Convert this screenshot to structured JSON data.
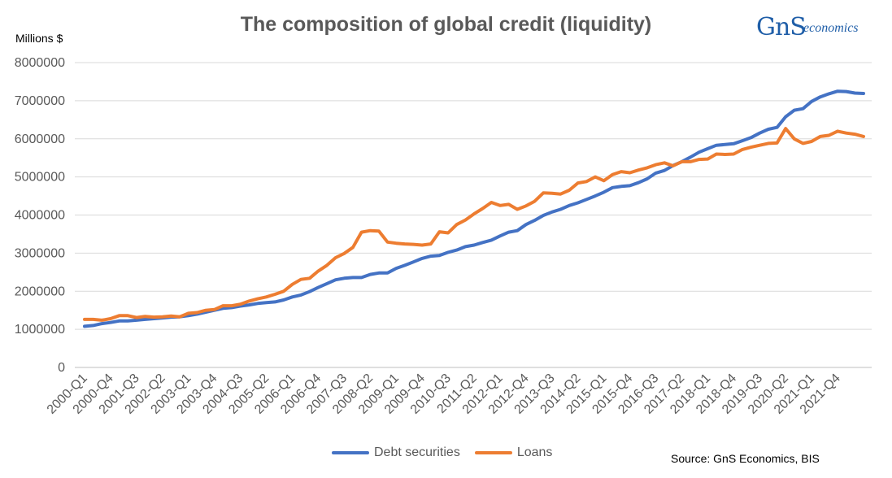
{
  "chart_data": {
    "type": "line",
    "title": "The composition of global credit (liquidity)",
    "ylabel": "Millions $",
    "xlabel": "",
    "ylim": [
      0,
      8000000
    ],
    "yticks": [
      0,
      1000000,
      2000000,
      3000000,
      4000000,
      5000000,
      6000000,
      7000000,
      8000000
    ],
    "ytick_labels": [
      "0",
      "1000000",
      "2000000",
      "3000000",
      "4000000",
      "5000000",
      "6000000",
      "7000000",
      "8000000"
    ],
    "grid": "horizontal",
    "legend_position": "bottom",
    "x": [
      "2000-Q1",
      "2000-Q2",
      "2000-Q3",
      "2000-Q4",
      "2001-Q1",
      "2001-Q2",
      "2001-Q3",
      "2001-Q4",
      "2002-Q1",
      "2002-Q2",
      "2002-Q3",
      "2002-Q4",
      "2003-Q1",
      "2003-Q2",
      "2003-Q3",
      "2003-Q4",
      "2004-Q1",
      "2004-Q2",
      "2004-Q3",
      "2004-Q4",
      "2005-Q1",
      "2005-Q2",
      "2005-Q3",
      "2005-Q4",
      "2006-Q1",
      "2006-Q2",
      "2006-Q3",
      "2006-Q4",
      "2007-Q1",
      "2007-Q2",
      "2007-Q3",
      "2007-Q4",
      "2008-Q1",
      "2008-Q2",
      "2008-Q3",
      "2008-Q4",
      "2009-Q1",
      "2009-Q2",
      "2009-Q3",
      "2009-Q4",
      "2010-Q1",
      "2010-Q2",
      "2010-Q3",
      "2010-Q4",
      "2011-Q1",
      "2011-Q2",
      "2011-Q3",
      "2011-Q4",
      "2012-Q1",
      "2012-Q2",
      "2012-Q3",
      "2012-Q4",
      "2013-Q1",
      "2013-Q2",
      "2013-Q3",
      "2013-Q4",
      "2014-Q1",
      "2014-Q2",
      "2014-Q3",
      "2014-Q4",
      "2015-Q1",
      "2015-Q2",
      "2015-Q3",
      "2015-Q4",
      "2016-Q1",
      "2016-Q2",
      "2016-Q3",
      "2016-Q4",
      "2017-Q1",
      "2017-Q2",
      "2017-Q3",
      "2017-Q4",
      "2018-Q1",
      "2018-Q2",
      "2018-Q3",
      "2018-Q4",
      "2019-Q1",
      "2019-Q2",
      "2019-Q3",
      "2019-Q4",
      "2020-Q1",
      "2020-Q2",
      "2020-Q3",
      "2020-Q4",
      "2021-Q1",
      "2021-Q2",
      "2021-Q3",
      "2021-Q4",
      "2022-Q1",
      "2022-Q2",
      "2022-Q3"
    ],
    "xtick_labels": [
      "2000-Q1",
      "2000-Q4",
      "2001-Q3",
      "2002-Q2",
      "2003-Q1",
      "2003-Q4",
      "2004-Q3",
      "2005-Q2",
      "2006-Q1",
      "2006-Q4",
      "2007-Q3",
      "2008-Q2",
      "2009-Q1",
      "2009-Q4",
      "2010-Q3",
      "2011-Q2",
      "2012-Q1",
      "2012-Q4",
      "2013-Q3",
      "2014-Q2",
      "2015-Q1",
      "2015-Q4",
      "2016-Q3",
      "2017-Q2",
      "2018-Q1",
      "2018-Q4",
      "2019-Q3",
      "2020-Q2",
      "2021-Q1",
      "2021-Q4"
    ],
    "series": [
      {
        "name": "Debt securities",
        "color": "#4472c4",
        "values": [
          1080000,
          1100000,
          1150000,
          1180000,
          1220000,
          1220000,
          1240000,
          1260000,
          1280000,
          1300000,
          1320000,
          1330000,
          1360000,
          1400000,
          1450000,
          1500000,
          1550000,
          1570000,
          1610000,
          1640000,
          1680000,
          1700000,
          1720000,
          1770000,
          1850000,
          1900000,
          1990000,
          2100000,
          2200000,
          2300000,
          2340000,
          2360000,
          2360000,
          2440000,
          2480000,
          2480000,
          2600000,
          2680000,
          2770000,
          2860000,
          2920000,
          2940000,
          3020000,
          3080000,
          3170000,
          3210000,
          3280000,
          3340000,
          3450000,
          3550000,
          3590000,
          3750000,
          3860000,
          3990000,
          4080000,
          4150000,
          4250000,
          4320000,
          4410000,
          4500000,
          4600000,
          4720000,
          4750000,
          4770000,
          4850000,
          4950000,
          5100000,
          5170000,
          5300000,
          5400000,
          5520000,
          5650000,
          5740000,
          5830000,
          5850000,
          5870000,
          5950000,
          6030000,
          6150000,
          6250000,
          6300000,
          6580000,
          6750000,
          6790000,
          6980000,
          7100000,
          7180000,
          7250000,
          7240000,
          7200000,
          7190000
        ]
      },
      {
        "name": "Loans",
        "color": "#ed7d31",
        "values": [
          1260000,
          1260000,
          1240000,
          1280000,
          1360000,
          1360000,
          1310000,
          1340000,
          1320000,
          1330000,
          1350000,
          1330000,
          1420000,
          1440000,
          1500000,
          1520000,
          1620000,
          1620000,
          1660000,
          1740000,
          1800000,
          1850000,
          1920000,
          2000000,
          2180000,
          2310000,
          2340000,
          2530000,
          2680000,
          2880000,
          2990000,
          3150000,
          3550000,
          3590000,
          3580000,
          3290000,
          3260000,
          3240000,
          3230000,
          3210000,
          3240000,
          3560000,
          3530000,
          3750000,
          3870000,
          4030000,
          4170000,
          4330000,
          4250000,
          4280000,
          4150000,
          4240000,
          4360000,
          4580000,
          4570000,
          4550000,
          4650000,
          4840000,
          4880000,
          5000000,
          4900000,
          5060000,
          5140000,
          5110000,
          5180000,
          5240000,
          5320000,
          5370000,
          5290000,
          5400000,
          5400000,
          5460000,
          5470000,
          5600000,
          5590000,
          5600000,
          5720000,
          5780000,
          5830000,
          5880000,
          5890000,
          6270000,
          6000000,
          5880000,
          5930000,
          6060000,
          6090000,
          6200000,
          6150000,
          6120000,
          6060000
        ]
      }
    ],
    "annotations": [
      "Source: GnS Economics, BIS"
    ]
  },
  "logo": {
    "text_main": "GnS",
    "text_sub": "economics"
  }
}
